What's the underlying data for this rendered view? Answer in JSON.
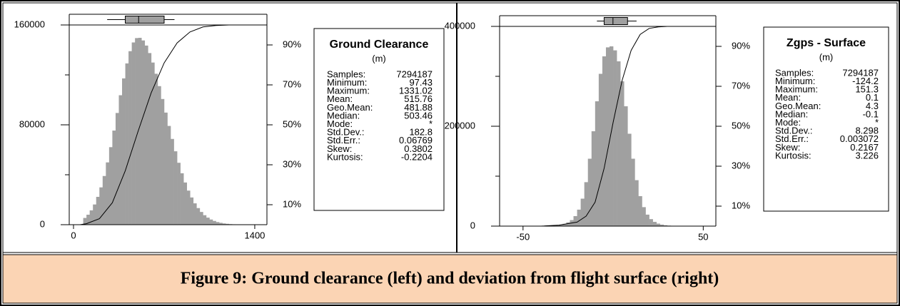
{
  "caption": "Figure 9: Ground clearance (left) and deviation from flight surface (right)",
  "chart_data": [
    {
      "type": "histogram",
      "color": "#a0a0a0",
      "bins": [
        75,
        100,
        125,
        150,
        175,
        200,
        225,
        250,
        275,
        300,
        325,
        350,
        375,
        400,
        425,
        450,
        475,
        500,
        525,
        550,
        575,
        600,
        625,
        650,
        675,
        700,
        725,
        750,
        775,
        800,
        825,
        850,
        875,
        900,
        925,
        950,
        975,
        1000,
        1025,
        1050,
        1075,
        1100,
        1125,
        1150,
        1175,
        1200,
        1225,
        1250,
        1275,
        1300,
        1325,
        1350
      ],
      "values": [
        5400,
        8000,
        11500,
        16200,
        22300,
        29900,
        39000,
        49900,
        62100,
        75400,
        89500,
        103700,
        117200,
        129200,
        139000,
        146000,
        149500,
        149700,
        147600,
        143500,
        137500,
        129900,
        120900,
        111000,
        100700,
        89800,
        79100,
        68700,
        58800,
        49600,
        41200,
        33800,
        27300,
        21800,
        17100,
        13300,
        10200,
        7600,
        5650,
        4150,
        3000,
        2100,
        1500,
        1000,
        700,
        450,
        300,
        200,
        120,
        80,
        50
      ],
      "cdf": {
        "x": [
          50,
          100,
          200,
          300,
          400,
          500,
          600,
          700,
          800,
          900,
          1000,
          1100,
          1200,
          1300,
          1450
        ],
        "values": [
          0,
          0.5,
          3,
          11,
          27,
          47,
          66,
          81,
          91,
          96.5,
          99,
          99.7,
          100,
          100,
          100
        ]
      },
      "box": {
        "whisker_low": 260,
        "q1": 400,
        "median": 503,
        "q3": 700,
        "whisker_high": 780
      },
      "xlim": [
        -33,
        1494
      ],
      "xticks": [
        0,
        1400
      ],
      "ylim": [
        0,
        160000
      ],
      "yticks": [
        0,
        80000,
        160000
      ],
      "yminorticks": [
        40000,
        120000
      ],
      "y2lim": [
        0,
        100
      ],
      "y2ticks": [
        {
          "value": 10,
          "label": "10%"
        },
        {
          "value": 30,
          "label": "30%"
        },
        {
          "value": 50,
          "label": "50%"
        },
        {
          "value": 70,
          "label": "70%"
        },
        {
          "value": 90,
          "label": "90%"
        }
      ],
      "stats": {
        "title": "Ground Clearance",
        "unit": "(m)",
        "rows": [
          {
            "label": "Samples:",
            "value": 7294187
          },
          {
            "label": "Minimum:",
            "value": 97.43
          },
          {
            "label": "Maximum:",
            "value": 1331.02
          },
          {
            "label": "Mean:",
            "value": 515.76
          },
          {
            "label": "Geo.Mean:",
            "value": 481.88
          },
          {
            "label": "Median:",
            "value": 503.46
          },
          {
            "label": "Mode:",
            "value": "*"
          },
          {
            "label": "Std.Dev.:",
            "value": 182.8
          },
          {
            "label": "Std.Err.:",
            "value": 0.06769
          },
          {
            "label": "Skew:",
            "value": 0.3802
          },
          {
            "label": "Kurtosis:",
            "value": -0.2204
          }
        ]
      }
    },
    {
      "type": "histogram",
      "color": "#a0a0a0",
      "bins": [
        -40,
        -38,
        -36,
        -34,
        -32,
        -30,
        -28,
        -26,
        -24,
        -22,
        -20,
        -18,
        -16,
        -14,
        -12,
        -10,
        -8,
        -6,
        -4,
        -2,
        0,
        2,
        4,
        6,
        8,
        10,
        12,
        14,
        16,
        18,
        20,
        22,
        24,
        26,
        28,
        30,
        32,
        34,
        36,
        38,
        40
      ],
      "values": [
        100,
        200,
        400,
        800,
        1500,
        2700,
        4500,
        7500,
        12000,
        20000,
        33000,
        55000,
        88000,
        135000,
        190000,
        250000,
        305000,
        340000,
        358000,
        360000,
        352000,
        330000,
        290000,
        240000,
        185000,
        135000,
        92000,
        60000,
        38000,
        23000,
        14000,
        8500,
        5000,
        3000,
        1800,
        1000,
        600,
        350,
        200,
        100
      ],
      "cdf": {
        "x": [
          -63,
          -40,
          -30,
          -20,
          -15,
          -10,
          -5,
          0,
          5,
          10,
          15,
          20,
          25,
          30,
          57
        ],
        "values": [
          0,
          0,
          0.5,
          2,
          5,
          12,
          29,
          52,
          73,
          88,
          96,
          99,
          99.7,
          100,
          100
        ]
      },
      "box": {
        "whisker_low": -9,
        "q1": -5,
        "median": -0.1,
        "q3": 8,
        "whisker_high": 13
      },
      "xlim": [
        -63,
        57
      ],
      "xticks": [
        -50,
        50
      ],
      "ylim": [
        0,
        400000
      ],
      "yticks": [
        0,
        200000,
        400000
      ],
      "yminorticks": [
        100000,
        300000
      ],
      "y2lim": [
        0,
        100
      ],
      "y2ticks": [
        {
          "value": 10,
          "label": "10%"
        },
        {
          "value": 30,
          "label": "30%"
        },
        {
          "value": 50,
          "label": "50%"
        },
        {
          "value": 70,
          "label": "70%"
        },
        {
          "value": 90,
          "label": "90%"
        }
      ],
      "stats": {
        "title": "Zgps - Surface",
        "unit": "(m)",
        "rows": [
          {
            "label": "Samples:",
            "value": 7294187
          },
          {
            "label": "Minimum:",
            "value": -124.2
          },
          {
            "label": "Maximum:",
            "value": 151.3
          },
          {
            "label": "Mean:",
            "value": 0.1
          },
          {
            "label": "Geo.Mean:",
            "value": 4.3
          },
          {
            "label": "Median:",
            "value": -0.1
          },
          {
            "label": "Mode:",
            "value": "*"
          },
          {
            "label": "Std.Dev.:",
            "value": 8.298
          },
          {
            "label": "Std.Err.:",
            "value": 0.003072
          },
          {
            "label": "Skew:",
            "value": 0.2167
          },
          {
            "label": "Kurtosis:",
            "value": 3.226
          }
        ]
      }
    }
  ]
}
